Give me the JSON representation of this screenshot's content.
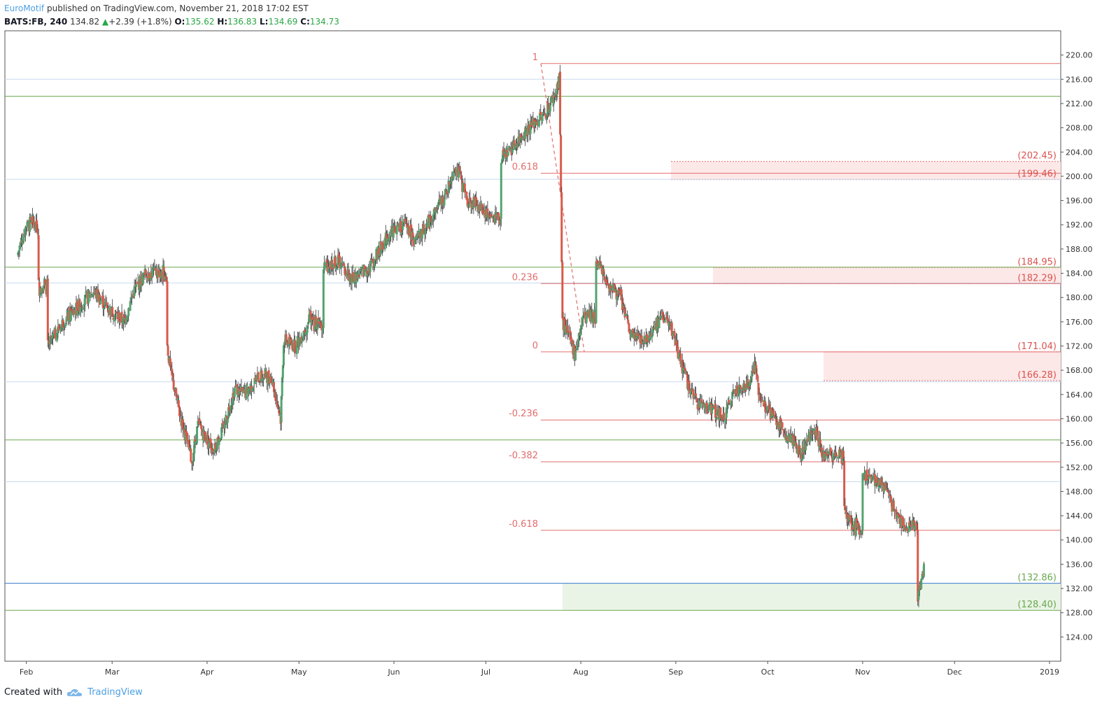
{
  "header": {
    "author": "EuroMotif",
    "published": " published on TradingView.com, November 21, 2018 17:02 EST",
    "symbol": "BATS:FB, 240",
    "last": "134.82",
    "change_arrow": "▲",
    "change": "+2.39 (+1.8%)",
    "o_key": "O:",
    "o_val": "135.62",
    "h_key": "H:",
    "h_val": "136.83",
    "l_key": "L:",
    "l_val": "134.69",
    "c_key": "C:",
    "c_val": "134.73"
  },
  "footer": {
    "created_with": "Created with",
    "brand": "TradingView"
  },
  "colors": {
    "up": "#53a46f",
    "down": "#d95a4a",
    "fib": "#e36d6d",
    "zone_red": "#fde8e8",
    "zone_green": "#eaf4e6",
    "green_line": "#6aa84f",
    "blue_line": "#3a78c9",
    "light_blue": "#c8dcef",
    "price_label_red": "#d9534f",
    "price_label_green": "#6aa84f"
  },
  "chart_data": {
    "type": "candlestick",
    "ylim": [
      122,
      222
    ],
    "y_ticks": [
      "220.00",
      "216.00",
      "212.00",
      "208.00",
      "204.00",
      "200.00",
      "196.00",
      "192.00",
      "188.00",
      "184.00",
      "180.00",
      "176.00",
      "172.00",
      "168.00",
      "164.00",
      "160.00",
      "156.00",
      "152.00",
      "148.00",
      "144.00",
      "140.00",
      "136.00",
      "132.00",
      "128.00",
      "124.00"
    ],
    "x_labels": [
      "Feb",
      "Mar",
      "Apr",
      "May",
      "Jun",
      "Jul",
      "Aug",
      "Sep",
      "Oct",
      "Nov",
      "Dec",
      "2019"
    ],
    "horizontal_green": [
      213.2,
      185.0,
      156.5,
      128.4
    ],
    "horizontal_light_blue": [
      216.0,
      199.5,
      182.4,
      166.1,
      149.6
    ],
    "horizontal_blue": [
      132.86
    ],
    "fib_levels": [
      {
        "label": "1",
        "price": 218.6
      },
      {
        "label": "0.618",
        "price": 200.5
      },
      {
        "label": "0.236",
        "price": 182.3
      },
      {
        "label": "0",
        "price": 171.04
      },
      {
        "label": "-0.236",
        "price": 159.8
      },
      {
        "label": "-0.382",
        "price": 152.9
      },
      {
        "label": "-0.618",
        "price": 141.6
      }
    ],
    "price_labels": [
      {
        "text": "(202.45)",
        "price": 202.45,
        "color": "red"
      },
      {
        "text": "(199.46)",
        "price": 199.46,
        "color": "red"
      },
      {
        "text": "(184.95)",
        "price": 184.95,
        "color": "red"
      },
      {
        "text": "(182.29)",
        "price": 182.29,
        "color": "red"
      },
      {
        "text": "(171.04)",
        "price": 171.04,
        "color": "red"
      },
      {
        "text": "(166.28)",
        "price": 166.28,
        "color": "red"
      },
      {
        "text": "(132.86)",
        "price": 132.86,
        "color": "green"
      },
      {
        "text": "(128.40)",
        "price": 128.4,
        "color": "green"
      }
    ],
    "zones": [
      {
        "top": 202.45,
        "bottom": 199.46,
        "color": "red",
        "start": "Sep"
      },
      {
        "top": 184.95,
        "bottom": 182.29,
        "color": "red",
        "start": "Sep-mid"
      },
      {
        "top": 171.04,
        "bottom": 166.28,
        "color": "red",
        "start": "Oct-late"
      },
      {
        "top": 132.86,
        "bottom": 128.4,
        "color": "green",
        "start": "Aug"
      }
    ],
    "close_path": [
      [
        "2018-01-29",
        187
      ],
      [
        "2018-02-01",
        192
      ],
      [
        "2018-02-05",
        182
      ],
      [
        "2018-02-08",
        172
      ],
      [
        "2018-02-13",
        176
      ],
      [
        "2018-02-19",
        179
      ],
      [
        "2018-02-23",
        181
      ],
      [
        "2018-02-28",
        178
      ],
      [
        "2018-03-05",
        176
      ],
      [
        "2018-03-08",
        181
      ],
      [
        "2018-03-12",
        184
      ],
      [
        "2018-03-16",
        184
      ],
      [
        "2018-03-19",
        172
      ],
      [
        "2018-03-20",
        168
      ],
      [
        "2018-03-23",
        161
      ],
      [
        "2018-03-27",
        153
      ],
      [
        "2018-03-29",
        159
      ],
      [
        "2018-04-03",
        155
      ],
      [
        "2018-04-06",
        158
      ],
      [
        "2018-04-10",
        165
      ],
      [
        "2018-04-13",
        164
      ],
      [
        "2018-04-18",
        167
      ],
      [
        "2018-04-22",
        167
      ],
      [
        "2018-04-25",
        160
      ],
      [
        "2018-04-26",
        173
      ],
      [
        "2018-04-30",
        172
      ],
      [
        "2018-05-04",
        176
      ],
      [
        "2018-05-09",
        185
      ],
      [
        "2018-05-14",
        186
      ],
      [
        "2018-05-18",
        183
      ],
      [
        "2018-05-24",
        185
      ],
      [
        "2018-05-31",
        191
      ],
      [
        "2018-06-05",
        192
      ],
      [
        "2018-06-08",
        189
      ],
      [
        "2018-06-13",
        193
      ],
      [
        "2018-06-18",
        197
      ],
      [
        "2018-06-21",
        202
      ],
      [
        "2018-06-25",
        196
      ],
      [
        "2018-06-29",
        195
      ],
      [
        "2018-07-03",
        193
      ],
      [
        "2018-07-06",
        203
      ],
      [
        "2018-07-10",
        205
      ],
      [
        "2018-07-13",
        207
      ],
      [
        "2018-07-17",
        209
      ],
      [
        "2018-07-20",
        210
      ],
      [
        "2018-07-24",
        214
      ],
      [
        "2018-07-25",
        217
      ],
      [
        "2018-07-26",
        176
      ],
      [
        "2018-07-30",
        171
      ],
      [
        "2018-08-02",
        177
      ],
      [
        "2018-08-06",
        186
      ],
      [
        "2018-08-09",
        183
      ],
      [
        "2018-08-14",
        180
      ],
      [
        "2018-08-17",
        174
      ],
      [
        "2018-08-22",
        173
      ],
      [
        "2018-08-28",
        177
      ],
      [
        "2018-08-31",
        174
      ],
      [
        "2018-09-04",
        167
      ],
      [
        "2018-09-07",
        163
      ],
      [
        "2018-09-12",
        162
      ],
      [
        "2018-09-17",
        160
      ],
      [
        "2018-09-20",
        165
      ],
      [
        "2018-09-24",
        165
      ],
      [
        "2018-09-27",
        169
      ],
      [
        "2018-09-28",
        164
      ],
      [
        "2018-10-03",
        160
      ],
      [
        "2018-10-08",
        157
      ],
      [
        "2018-10-12",
        154
      ],
      [
        "2018-10-16",
        159
      ],
      [
        "2018-10-19",
        154
      ],
      [
        "2018-10-23",
        154
      ],
      [
        "2018-10-26",
        145
      ],
      [
        "2018-10-29",
        142
      ],
      [
        "2018-11-01",
        151
      ],
      [
        "2018-11-05",
        150
      ],
      [
        "2018-11-08",
        149
      ],
      [
        "2018-11-12",
        144
      ],
      [
        "2018-11-15",
        142
      ],
      [
        "2018-11-19",
        131
      ],
      [
        "2018-11-21",
        135
      ]
    ]
  }
}
